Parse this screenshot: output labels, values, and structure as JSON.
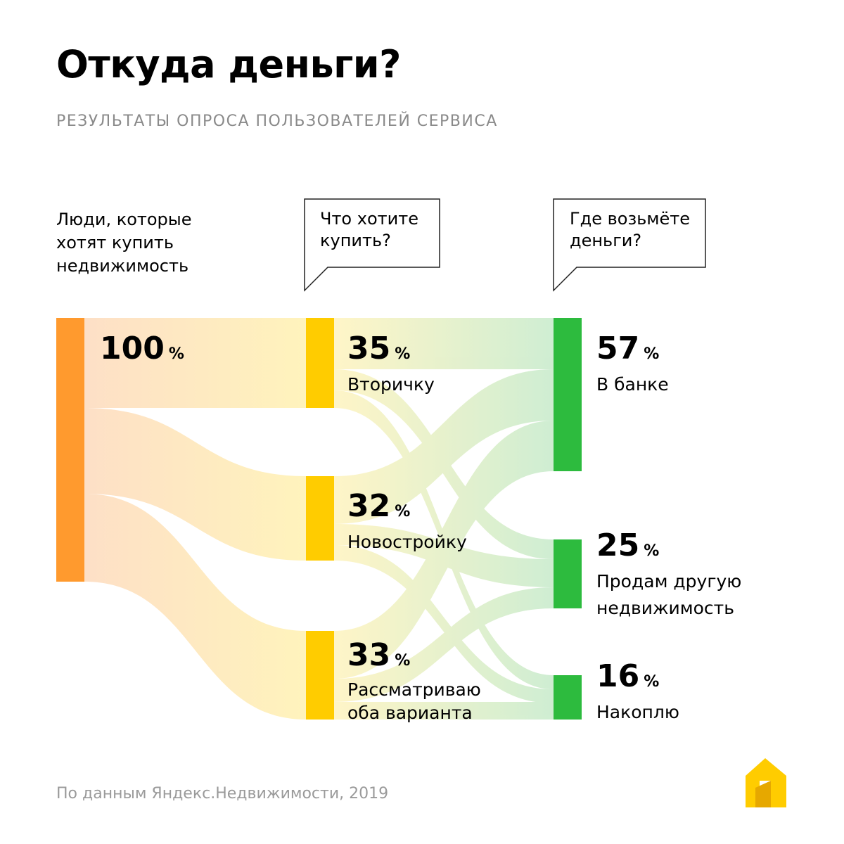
{
  "title": "Откуда деньги?",
  "subtitle": "РЕЗУЛЬТАТЫ ОПРОСА ПОЛЬЗОВАТЕЛЕЙ СЕРВИСА",
  "columns": {
    "source_heading": [
      "Люди, которые",
      "хотят купить",
      "недвижимость"
    ],
    "question_1": [
      "Что хотите",
      "купить?"
    ],
    "question_2": [
      "Где возьмёте",
      "деньги?"
    ]
  },
  "percent_sign": "%",
  "nodes": {
    "total": {
      "value": "100",
      "pct": 100
    },
    "what": [
      {
        "value": "35",
        "pct": 35,
        "label": [
          "Вторичку"
        ]
      },
      {
        "value": "32",
        "pct": 32,
        "label": [
          "Новостройку"
        ]
      },
      {
        "value": "33",
        "pct": 33,
        "label": [
          "Рассматриваю",
          "оба варианта"
        ]
      }
    ],
    "where": [
      {
        "value": "57",
        "pct": 57,
        "label": [
          "В банке"
        ]
      },
      {
        "value": "25",
        "pct": 25,
        "label": [
          "Продам другую",
          "недвижимость"
        ]
      },
      {
        "value": "16",
        "pct": 16,
        "label": [
          "Накоплю"
        ]
      }
    ]
  },
  "colors": {
    "source_bar": "#ff9a2e",
    "middle_bar": "#ffcc00",
    "target_bar": "#2dbb3e",
    "flow_start": "#fddcc0",
    "flow_mid": "#fff2b5",
    "flow_end": "#bfe8c4",
    "logo_main": "#ffcc00",
    "logo_shade": "#e6a800"
  },
  "footer": "По данным Яндекс.Недвижимости, 2019"
}
